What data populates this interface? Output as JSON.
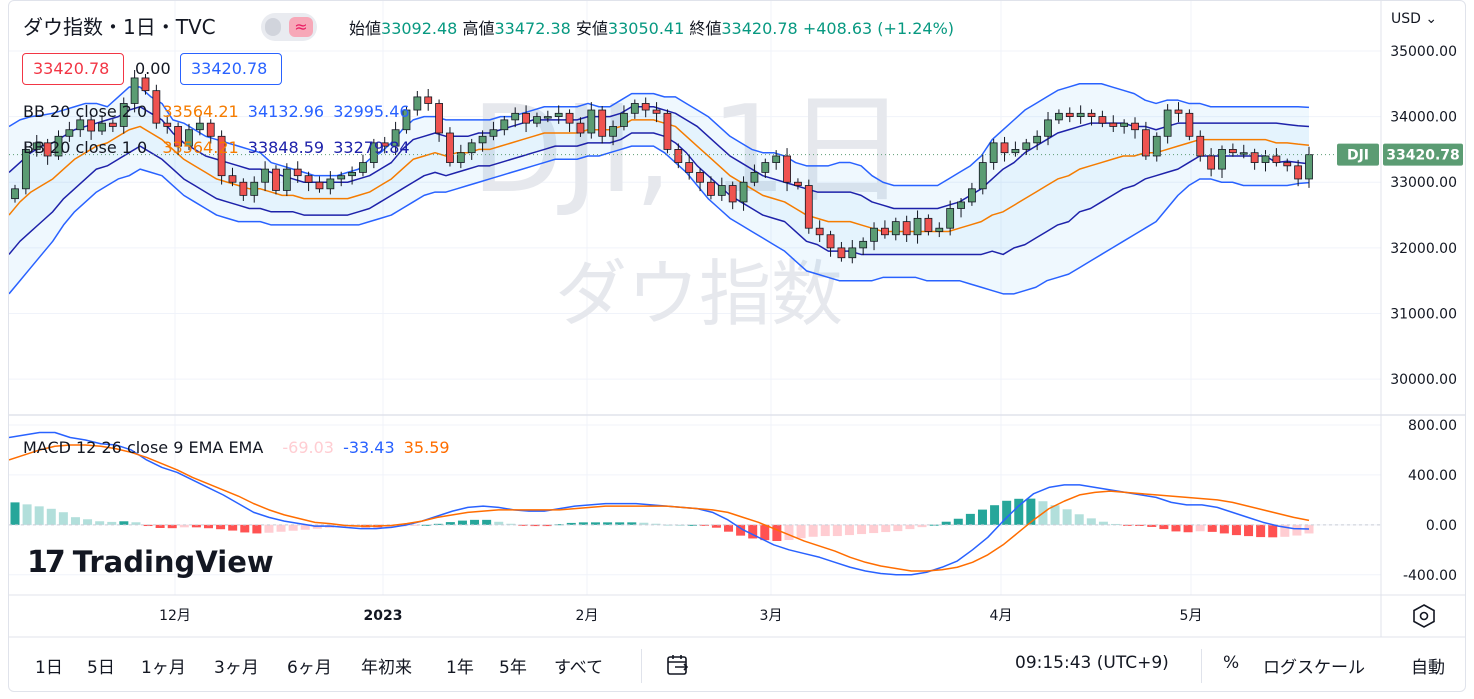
{
  "header": {
    "symbol_title": "ダウ指数・1日・TVC",
    "compare_icon": "wave-icon",
    "ohlc": [
      {
        "label": "始値",
        "value": "33092.48"
      },
      {
        "label": "高値",
        "value": "33472.38"
      },
      {
        "label": "安値",
        "value": "33050.41"
      },
      {
        "label": "終値",
        "value": "33420.78"
      }
    ],
    "change": "+408.63 (+1.24%)",
    "sell_price": "33420.78",
    "spread": "0.00",
    "buy_price": "33420.78",
    "currency": "USD"
  },
  "watermark": {
    "line1": "DJI, 1日",
    "line2": "ダウ指数"
  },
  "indicators": {
    "bb1": {
      "label": "BB 20 close 2 0",
      "basis": "33564.21",
      "upper": "34132.96",
      "lower": "32995.46"
    },
    "bb2": {
      "label": "BB 20 close 1 0",
      "basis": "33564.21",
      "upper": "33848.59",
      "lower": "33279.84"
    },
    "macd": {
      "label": "MACD 12 26 close 9 EMA EMA",
      "hist": "-69.03",
      "macd": "-33.43",
      "signal": "35.59"
    }
  },
  "price_label": {
    "symbol": "DJI",
    "value": "33420.78"
  },
  "logo": {
    "mark": "17",
    "text": "TradingView"
  },
  "colors": {
    "up": "#26a69a",
    "up_body": "#5b9c73",
    "down": "#ef5350",
    "bb_inner": "#1e22aa",
    "bb_outer": "#2962ff",
    "basis": "#f57c00",
    "macd": "#2962ff",
    "signal": "#ff6d00",
    "hist_up_strong": "#26a69a",
    "hist_up_weak": "#b2dfdb",
    "hist_down_strong": "#ff5252",
    "hist_down_weak": "#ffcdd2"
  },
  "bottom_toolbar": {
    "ranges": [
      "1日",
      "5日",
      "1ヶ月",
      "3ヶ月",
      "6ヶ月",
      "年初来",
      "1年",
      "5年",
      "すべて"
    ],
    "date_range_icon": "calendar-goto-icon",
    "clock": "09:15:43 (UTC+9)",
    "percent": "%",
    "log_scale": "ログスケール",
    "auto": "自動"
  },
  "settings_icon": "gear-hex-icon",
  "chart_data": {
    "type": "candlestick",
    "price_axis": {
      "ticks": [
        "35000.00",
        "34000.00",
        "33000.00",
        "32000.00",
        "31000.00",
        "30000.00"
      ],
      "ylim": [
        29500,
        35700
      ]
    },
    "macd_axis": {
      "ticks": [
        "800.00",
        "400.00",
        "0.00",
        "-400.00"
      ],
      "ylim": [
        -450,
        800
      ]
    },
    "time_axis": {
      "ticks": [
        "12月",
        "2023",
        "2月",
        "3月",
        "4月",
        "5月"
      ]
    },
    "series": [
      {
        "name": "DJI",
        "kind": "ohlc",
        "close": [
          32900,
          33500,
          33600,
          33400,
          33700,
          33800,
          33950,
          33780,
          33900,
          33850,
          34200,
          34589,
          34395,
          33900,
          33850,
          33550,
          33800,
          33900,
          33700,
          33100,
          33000,
          32800,
          33000,
          33200,
          32875,
          33200,
          33100,
          33000,
          32900,
          33050,
          33100,
          33150,
          33300,
          33600,
          33550,
          33800,
          34100,
          34300,
          34200,
          33750,
          33300,
          33450,
          33600,
          33700,
          33800,
          33950,
          34050,
          33900,
          34000,
          34000,
          34050,
          33900,
          33750,
          34100,
          33700,
          33850,
          34050,
          34200,
          34100,
          34050,
          33500,
          33300,
          33150,
          33000,
          32800,
          32950,
          32700,
          33000,
          33150,
          33300,
          33400,
          33000,
          32950,
          32300,
          32200,
          32000,
          31850,
          32000,
          32100,
          32300,
          32200,
          32400,
          32200,
          32450,
          32250,
          32300,
          32600,
          32700,
          32900,
          33300,
          33600,
          33450,
          33500,
          33600,
          33700,
          33950,
          34050,
          34000,
          34050,
          34000,
          33900,
          33850,
          33900,
          33800,
          33400,
          33700,
          34100,
          34050,
          33700,
          33400,
          33200,
          33500,
          33450,
          33450,
          33300,
          33400,
          33300,
          33250,
          33050,
          33420
        ]
      },
      {
        "name": "BB upper 2.0",
        "values": [
          33850,
          33950,
          34000,
          34020,
          34050,
          34100,
          34150,
          34200,
          34200,
          34150,
          34300,
          34450,
          34450,
          34300,
          34200,
          33950,
          33900,
          33800,
          33700,
          33650,
          33600,
          33550,
          33500,
          33450,
          33300,
          33250,
          33200,
          33150,
          33100,
          33100,
          33100,
          33150,
          33200,
          33350,
          33450,
          33600,
          33800,
          33950,
          34000,
          34000,
          33950,
          33950,
          33950,
          33950,
          33950,
          34000,
          34000,
          34050,
          34100,
          34150,
          34150,
          34150,
          34150,
          34200,
          34150,
          34150,
          34250,
          34350,
          34350,
          34350,
          34300,
          34300,
          34200,
          34100,
          34000,
          33850,
          33700,
          33600,
          33500,
          33450,
          33450,
          33400,
          33300,
          33250,
          33250,
          33250,
          33300,
          33300,
          33250,
          33100,
          33000,
          32950,
          32950,
          32950,
          32950,
          32950,
          33050,
          33150,
          33250,
          33400,
          33650,
          33800,
          33950,
          34100,
          34200,
          34300,
          34400,
          34450,
          34500,
          34500,
          34500,
          34450,
          34400,
          34350,
          34250,
          34200,
          34250,
          34250,
          34200,
          34200,
          34150,
          34150,
          34150,
          34150,
          34150,
          34150,
          34150,
          34150,
          34150,
          34140
        ]
      },
      {
        "name": "BB lower 2.0",
        "values": [
          31300,
          31500,
          31700,
          31900,
          32100,
          32350,
          32550,
          32700,
          32850,
          32950,
          33050,
          33100,
          33200,
          33150,
          33100,
          32950,
          32800,
          32700,
          32600,
          32500,
          32450,
          32400,
          32400,
          32400,
          32350,
          32350,
          32350,
          32350,
          32350,
          32350,
          32350,
          32350,
          32350,
          32400,
          32450,
          32500,
          32600,
          32700,
          32800,
          32850,
          32850,
          32900,
          32950,
          33000,
          33050,
          33100,
          33150,
          33200,
          33250,
          33300,
          33350,
          33350,
          33350,
          33400,
          33400,
          33450,
          33500,
          33550,
          33550,
          33550,
          33450,
          33300,
          33150,
          32950,
          32750,
          32600,
          32450,
          32350,
          32250,
          32150,
          32050,
          31950,
          31800,
          31650,
          31600,
          31550,
          31500,
          31500,
          31500,
          31500,
          31550,
          31550,
          31550,
          31550,
          31500,
          31500,
          31500,
          31500,
          31450,
          31400,
          31350,
          31300,
          31300,
          31350,
          31400,
          31500,
          31550,
          31600,
          31700,
          31800,
          31900,
          32000,
          32100,
          32200,
          32300,
          32400,
          32600,
          32800,
          32950,
          33050,
          33050,
          33000,
          33000,
          32950,
          32950,
          32950,
          32950,
          32950,
          32980,
          32995
        ]
      },
      {
        "name": "BB basis",
        "values": [
          32500,
          32700,
          32850,
          32950,
          33050,
          33200,
          33350,
          33450,
          33550,
          33600,
          33700,
          33800,
          33850,
          33750,
          33650,
          33500,
          33350,
          33250,
          33150,
          33050,
          33000,
          32950,
          32900,
          32900,
          32850,
          32800,
          32800,
          32750,
          32750,
          32750,
          32750,
          32750,
          32800,
          32850,
          32950,
          33050,
          33200,
          33350,
          33400,
          33450,
          33400,
          33450,
          33450,
          33500,
          33500,
          33550,
          33600,
          33650,
          33700,
          33750,
          33750,
          33750,
          33750,
          33800,
          33800,
          33800,
          33850,
          33950,
          33950,
          33950,
          33900,
          33850,
          33700,
          33550,
          33400,
          33250,
          33100,
          33000,
          32900,
          32800,
          32750,
          32700,
          32600,
          32500,
          32450,
          32400,
          32400,
          32400,
          32350,
          32300,
          32250,
          32250,
          32250,
          32250,
          32250,
          32250,
          32250,
          32300,
          32350,
          32400,
          32500,
          32550,
          32650,
          32750,
          32850,
          32950,
          33050,
          33100,
          33200,
          33250,
          33300,
          33350,
          33400,
          33400,
          33450,
          33450,
          33500,
          33550,
          33600,
          33650,
          33650,
          33650,
          33650,
          33650,
          33650,
          33650,
          33600,
          33600,
          33580,
          33564
        ]
      },
      {
        "name": "BB upper 1.0",
        "values": [
          33150,
          33300,
          33450,
          33550,
          33600,
          33700,
          33800,
          33850,
          33900,
          33950,
          34000,
          34100,
          34150,
          34050,
          33950,
          33750,
          33600,
          33500,
          33400,
          33350,
          33300,
          33250,
          33200,
          33200,
          33150,
          33100,
          33050,
          33000,
          33000,
          33000,
          33000,
          33000,
          33050,
          33100,
          33200,
          33300,
          33500,
          33650,
          33700,
          33750,
          33700,
          33700,
          33700,
          33750,
          33750,
          33800,
          33850,
          33900,
          33950,
          33950,
          33950,
          33950,
          33950,
          34000,
          34000,
          34000,
          34050,
          34150,
          34150,
          34150,
          34100,
          34050,
          33950,
          33850,
          33700,
          33550,
          33400,
          33300,
          33200,
          33100,
          33050,
          33000,
          32950,
          32900,
          32850,
          32850,
          32850,
          32850,
          32800,
          32700,
          32650,
          32600,
          32600,
          32600,
          32600,
          32600,
          32650,
          32700,
          32800,
          32900,
          33050,
          33200,
          33300,
          33450,
          33550,
          33650,
          33750,
          33800,
          33850,
          33900,
          33900,
          33900,
          33900,
          33850,
          33850,
          33800,
          33850,
          33900,
          33900,
          33900,
          33900,
          33900,
          33900,
          33900,
          33900,
          33900,
          33900,
          33880,
          33860,
          33849
        ]
      },
      {
        "name": "BB lower 1.0",
        "values": [
          31900,
          32100,
          32250,
          32400,
          32550,
          32750,
          32900,
          33050,
          33200,
          33250,
          33350,
          33450,
          33550,
          33450,
          33350,
          33200,
          33050,
          32950,
          32850,
          32750,
          32700,
          32650,
          32600,
          32600,
          32550,
          32550,
          32550,
          32500,
          32500,
          32500,
          32500,
          32500,
          32550,
          32600,
          32700,
          32800,
          32900,
          33000,
          33100,
          33150,
          33100,
          33150,
          33200,
          33250,
          33250,
          33300,
          33350,
          33400,
          33450,
          33500,
          33550,
          33550,
          33550,
          33600,
          33600,
          33600,
          33650,
          33750,
          33750,
          33750,
          33700,
          33600,
          33450,
          33250,
          33100,
          32950,
          32800,
          32700,
          32600,
          32500,
          32450,
          32400,
          32250,
          32100,
          32050,
          31950,
          31950,
          31950,
          31900,
          31900,
          31900,
          31900,
          31900,
          31900,
          31900,
          31900,
          31900,
          31900,
          31900,
          31900,
          31950,
          31900,
          32000,
          32050,
          32150,
          32250,
          32350,
          32400,
          32550,
          32600,
          32700,
          32800,
          32900,
          32950,
          33050,
          33100,
          33150,
          33200,
          33300,
          33400,
          33400,
          33400,
          33400,
          33400,
          33400,
          33400,
          33300,
          33320,
          33300,
          33280
        ]
      },
      {
        "name": "MACD",
        "values": [
          700,
          720,
          740,
          740,
          700,
          680,
          650,
          640,
          600,
          520,
          460,
          420,
          360,
          300,
          240,
          170,
          100,
          60,
          30,
          10,
          -10,
          -10,
          -20,
          -30,
          -30,
          -20,
          0,
          30,
          70,
          110,
          140,
          150,
          140,
          120,
          110,
          110,
          130,
          150,
          160,
          170,
          170,
          170,
          160,
          150,
          140,
          130,
          100,
          40,
          -40,
          -100,
          -160,
          -200,
          -230,
          -260,
          -300,
          -340,
          -370,
          -390,
          -400,
          -400,
          -380,
          -340,
          -290,
          -200,
          -100,
          30,
          150,
          250,
          300,
          320,
          320,
          300,
          280,
          260,
          240,
          220,
          180,
          160,
          160,
          140,
          100,
          60,
          20,
          -10,
          -30,
          -33
        ]
      },
      {
        "name": "Signal",
        "values": [
          520,
          560,
          600,
          630,
          640,
          640,
          630,
          610,
          580,
          540,
          490,
          440,
          380,
          330,
          280,
          230,
          170,
          120,
          80,
          50,
          20,
          10,
          -5,
          -10,
          -10,
          -5,
          10,
          30,
          60,
          80,
          100,
          110,
          120,
          120,
          120,
          120,
          120,
          130,
          140,
          150,
          150,
          150,
          150,
          150,
          140,
          130,
          120,
          100,
          60,
          20,
          -30,
          -80,
          -130,
          -170,
          -210,
          -260,
          -300,
          -330,
          -350,
          -370,
          -370,
          -360,
          -340,
          -300,
          -240,
          -160,
          -60,
          40,
          130,
          190,
          240,
          260,
          270,
          260,
          250,
          240,
          230,
          220,
          210,
          200,
          180,
          150,
          120,
          90,
          60,
          36
        ]
      }
    ]
  }
}
